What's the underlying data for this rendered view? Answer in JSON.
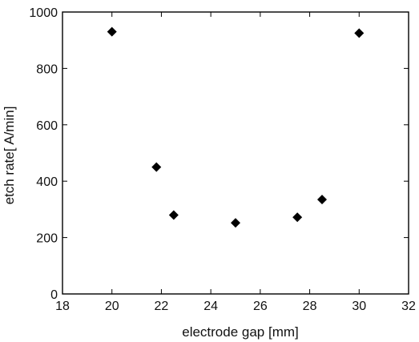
{
  "chart_data": {
    "type": "scatter",
    "xlabel": "electrode gap [mm]",
    "ylabel": "etch rate[ A/min]",
    "xlim": [
      18,
      32
    ],
    "ylim": [
      0,
      1000
    ],
    "xticks": [
      18,
      20,
      22,
      24,
      26,
      28,
      30,
      32
    ],
    "yticks": [
      0,
      200,
      400,
      600,
      800,
      1000
    ],
    "grid": false,
    "marker": "diamond",
    "marker_color": "#000000",
    "points": [
      {
        "x": 20.0,
        "y": 930
      },
      {
        "x": 21.8,
        "y": 450
      },
      {
        "x": 22.5,
        "y": 280
      },
      {
        "x": 25.0,
        "y": 252
      },
      {
        "x": 27.5,
        "y": 272
      },
      {
        "x": 28.5,
        "y": 335
      },
      {
        "x": 30.0,
        "y": 925
      }
    ]
  }
}
